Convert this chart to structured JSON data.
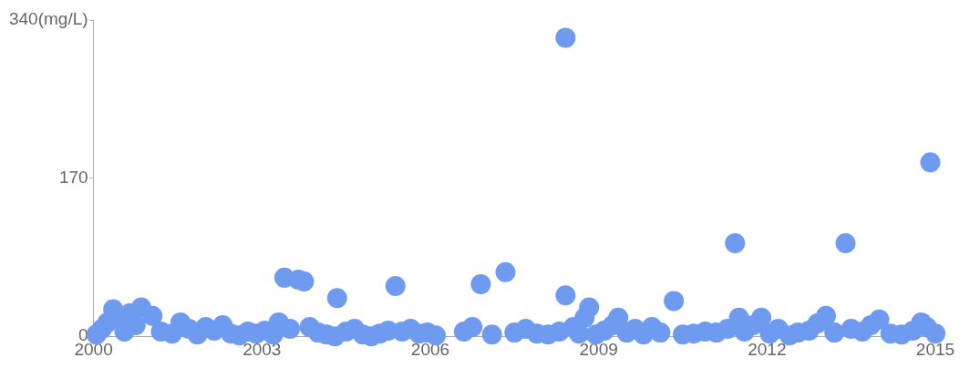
{
  "chart_data": {
    "type": "scatter",
    "color": "#6e9bf0",
    "marker": "circle",
    "grid": false,
    "legend": false,
    "xlim": [
      2000,
      2015
    ],
    "xticks": [
      2000,
      2003,
      2006,
      2009,
      2012,
      2015
    ],
    "ylim": [
      0,
      340
    ],
    "yticks": [
      0,
      170,
      {
        "value": 340,
        "label": "340(mg/L)"
      }
    ],
    "x": [
      2000.05,
      2000.15,
      2000.25,
      2000.35,
      2000.45,
      2000.55,
      2000.65,
      2000.75,
      2000.85,
      2001.05,
      2001.2,
      2001.4,
      2001.55,
      2001.7,
      2001.85,
      2002.0,
      2002.15,
      2002.3,
      2002.45,
      2002.6,
      2002.75,
      2002.9,
      2003.05,
      2003.2,
      2003.3,
      2003.4,
      2003.5,
      2003.65,
      2003.75,
      2003.85,
      2004.0,
      2004.15,
      2004.3,
      2004.34,
      2004.5,
      2004.65,
      2004.8,
      2004.95,
      2005.1,
      2005.25,
      2005.38,
      2005.5,
      2005.65,
      2005.8,
      2005.95,
      2006.1,
      2006.6,
      2006.75,
      2006.9,
      2007.1,
      2007.34,
      2007.5,
      2007.7,
      2007.9,
      2008.1,
      2008.3,
      2008.41,
      2008.41,
      2008.55,
      2008.65,
      2008.75,
      2008.83,
      2008.95,
      2009.1,
      2009.25,
      2009.35,
      2009.5,
      2009.65,
      2009.8,
      2009.95,
      2010.1,
      2010.34,
      2010.5,
      2010.7,
      2010.9,
      2011.1,
      2011.3,
      2011.43,
      2011.5,
      2011.6,
      2011.75,
      2011.9,
      2012.05,
      2012.2,
      2012.4,
      2012.55,
      2012.75,
      2012.9,
      2013.05,
      2013.2,
      2013.4,
      2013.5,
      2013.7,
      2013.85,
      2014.0,
      2014.2,
      2014.4,
      2014.6,
      2014.75,
      2014.85,
      2014.91,
      2015.0
    ],
    "values": [
      2,
      8,
      15,
      29,
      20,
      5,
      25,
      12,
      31,
      22,
      5,
      3,
      15,
      8,
      2,
      10,
      6,
      12,
      3,
      1,
      5,
      3,
      6,
      2,
      15,
      63,
      8,
      61,
      59,
      10,
      4,
      2,
      0,
      41,
      5,
      8,
      2,
      0,
      3,
      6,
      54,
      5,
      8,
      3,
      4,
      1,
      5,
      10,
      56,
      2,
      69,
      4,
      8,
      3,
      2,
      5,
      321,
      44,
      10,
      3,
      20,
      31,
      2,
      6,
      12,
      20,
      4,
      8,
      2,
      10,
      4,
      38,
      2,
      3,
      5,
      4,
      8,
      100,
      20,
      5,
      12,
      20,
      3,
      8,
      1,
      4,
      6,
      14,
      22,
      4,
      100,
      8,
      5,
      12,
      18,
      3,
      2,
      6,
      15,
      10,
      187,
      3
    ]
  }
}
